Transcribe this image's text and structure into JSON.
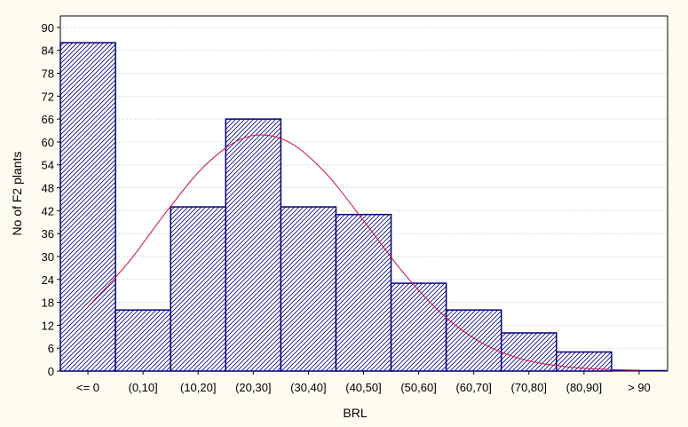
{
  "chart_data": {
    "type": "bar",
    "xlabel": "BRL",
    "ylabel": "No of F2 plants",
    "categories": [
      "<= 0",
      "(0,10]",
      "(10,20]",
      "(20,30]",
      "(30,40]",
      "(40,50]",
      "(50,60]",
      "(60,70]",
      "(70,80]",
      "(80,90]",
      "> 90"
    ],
    "values": [
      86,
      16,
      43,
      66,
      43,
      41,
      23,
      16,
      10,
      5,
      0
    ],
    "ylim": [
      0,
      93
    ],
    "yticks": [
      0,
      6,
      12,
      18,
      24,
      30,
      36,
      42,
      48,
      54,
      60,
      66,
      72,
      78,
      84,
      90
    ],
    "grid": "horizontal dotted",
    "bar_fill": "diagonal hatch",
    "fitted_curve": {
      "type": "normal",
      "x_start": -5,
      "x_end": 95,
      "y_values": [
        16.8,
        28.1,
        41.8,
        54.1,
        61.2,
        60.5,
        52.3,
        39.4,
        25.9,
        14.9,
        7.4,
        3.2,
        1.3,
        0.5,
        0.2
      ]
    },
    "colors": {
      "bar_border": "#000080",
      "hatch": "#000080",
      "curve": "#d0103a",
      "background": "#fffbf0",
      "plot_background": "#ffffff"
    }
  }
}
